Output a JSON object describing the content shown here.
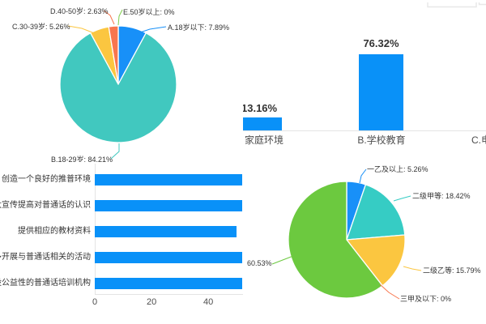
{
  "page": {
    "background": "#ffffff"
  },
  "chart_data": [
    {
      "id": "age-pie",
      "type": "pie",
      "position": "top-left",
      "label_style": "leader-line callouts",
      "start_angle": "12-o'clock, clockwise",
      "slices": [
        {
          "name": "A.18岁以下",
          "pct": 7.89,
          "label": "A.18岁以下: 7.89%",
          "color": "#1890f8"
        },
        {
          "name": "B.18-29岁",
          "pct": 84.21,
          "label": "B.18-29岁: 84.21%",
          "color": "#41c8bf"
        },
        {
          "name": "C.30-39岁",
          "pct": 5.26,
          "label": "C.30-39岁: 5.26%",
          "color": "#fbc640"
        },
        {
          "name": "D.40-50岁",
          "pct": 2.63,
          "label": "D.40-50岁: 2.63%",
          "color": "#f8764e"
        },
        {
          "name": "E.50岁以上",
          "pct": 0,
          "label": "E.50岁以上: 0%",
          "color": "#7fce4c"
        }
      ]
    },
    {
      "id": "influence-bar",
      "type": "bar",
      "position": "top-right",
      "bar_color": "#0991f8",
      "categories": [
        "家庭环境",
        "B.学校教育",
        "C.电"
      ],
      "values": [
        13.16,
        76.32,
        null
      ],
      "value_labels": [
        "13.16%",
        "76.32%"
      ]
    },
    {
      "id": "suggestion-bar",
      "type": "bar",
      "orientation": "horizontal",
      "position": "bottom-left",
      "bar_color": "#0991f8",
      "categories": [
        "创造一个良好的推普环境",
        "加大宣传提高对普通话的认识",
        "提供相应的教材资料",
        "多开展与普通话相关的活动",
        "开设公益性的普通话培训机构"
      ],
      "values": [
        52,
        52,
        50,
        52,
        52
      ],
      "x_ticks": [
        "0",
        "20",
        "40"
      ],
      "x_tick_values": [
        0,
        20,
        40
      ]
    },
    {
      "id": "level-pie",
      "type": "pie",
      "position": "bottom-right",
      "label_style": "leader-line callouts",
      "start_angle": "12-o'clock, clockwise",
      "slices": [
        {
          "name": "一乙及以上",
          "pct": 5.26,
          "label": "一乙及以上: 5.26%",
          "color": "#1890f8"
        },
        {
          "name": "二级甲等",
          "pct": 18.42,
          "label": "二级甲等: 18.42%",
          "color": "#36ccc4"
        },
        {
          "name": "二级乙等",
          "pct": 15.79,
          "label": "二级乙等: 15.79%",
          "color": "#fbc640"
        },
        {
          "name": "三甲及以下",
          "pct": 0,
          "label": "三甲及以下: 0%",
          "color": "#f8764e"
        },
        {
          "name": "",
          "pct": 60.53,
          "label": "60.53%",
          "color": "#6cc93f"
        }
      ]
    }
  ]
}
